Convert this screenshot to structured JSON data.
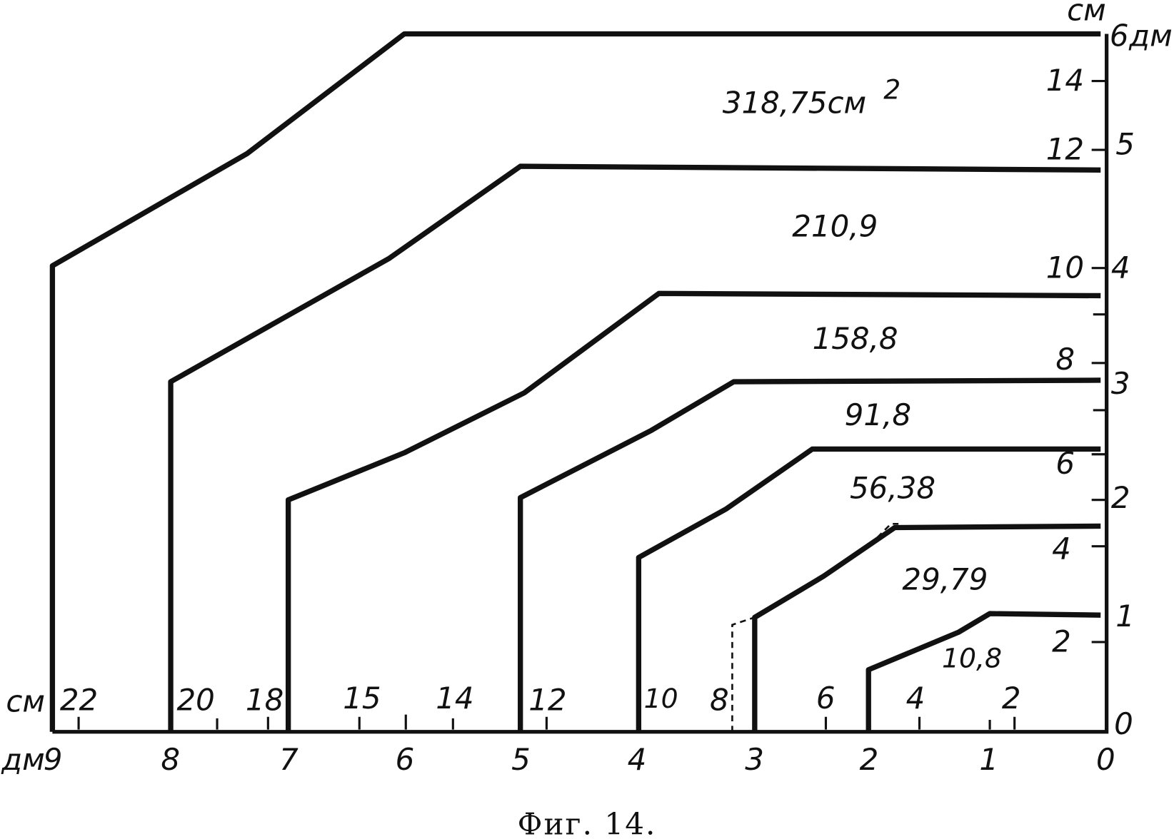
{
  "x_axis": {
    "cm_unit": "см",
    "cm_ticks": [
      "22",
      "20",
      "18",
      "15",
      "14",
      "12",
      "10",
      "8",
      "6",
      "4",
      "2"
    ],
    "dm_unit": "дм",
    "dm_ticks": [
      "9",
      "8",
      "7",
      "6",
      "5",
      "4",
      "3",
      "2",
      "1",
      "0"
    ]
  },
  "y_axis": {
    "cm_unit": "см",
    "cm_ticks": [
      "14",
      "12",
      "10",
      "8",
      "6",
      "4",
      "2",
      "0"
    ],
    "dm_unit": "дм",
    "dm_ticks": [
      "6",
      "5",
      "4",
      "3",
      "2",
      "1"
    ]
  },
  "areas": [
    {
      "label": "318,75см",
      "sup": "2"
    },
    {
      "label": "210,9"
    },
    {
      "label": "158,8"
    },
    {
      "label": "91,8"
    },
    {
      "label": "56,38"
    },
    {
      "label": "29,79"
    },
    {
      "label": "10,8"
    }
  ],
  "caption": "Фиг. 14."
}
